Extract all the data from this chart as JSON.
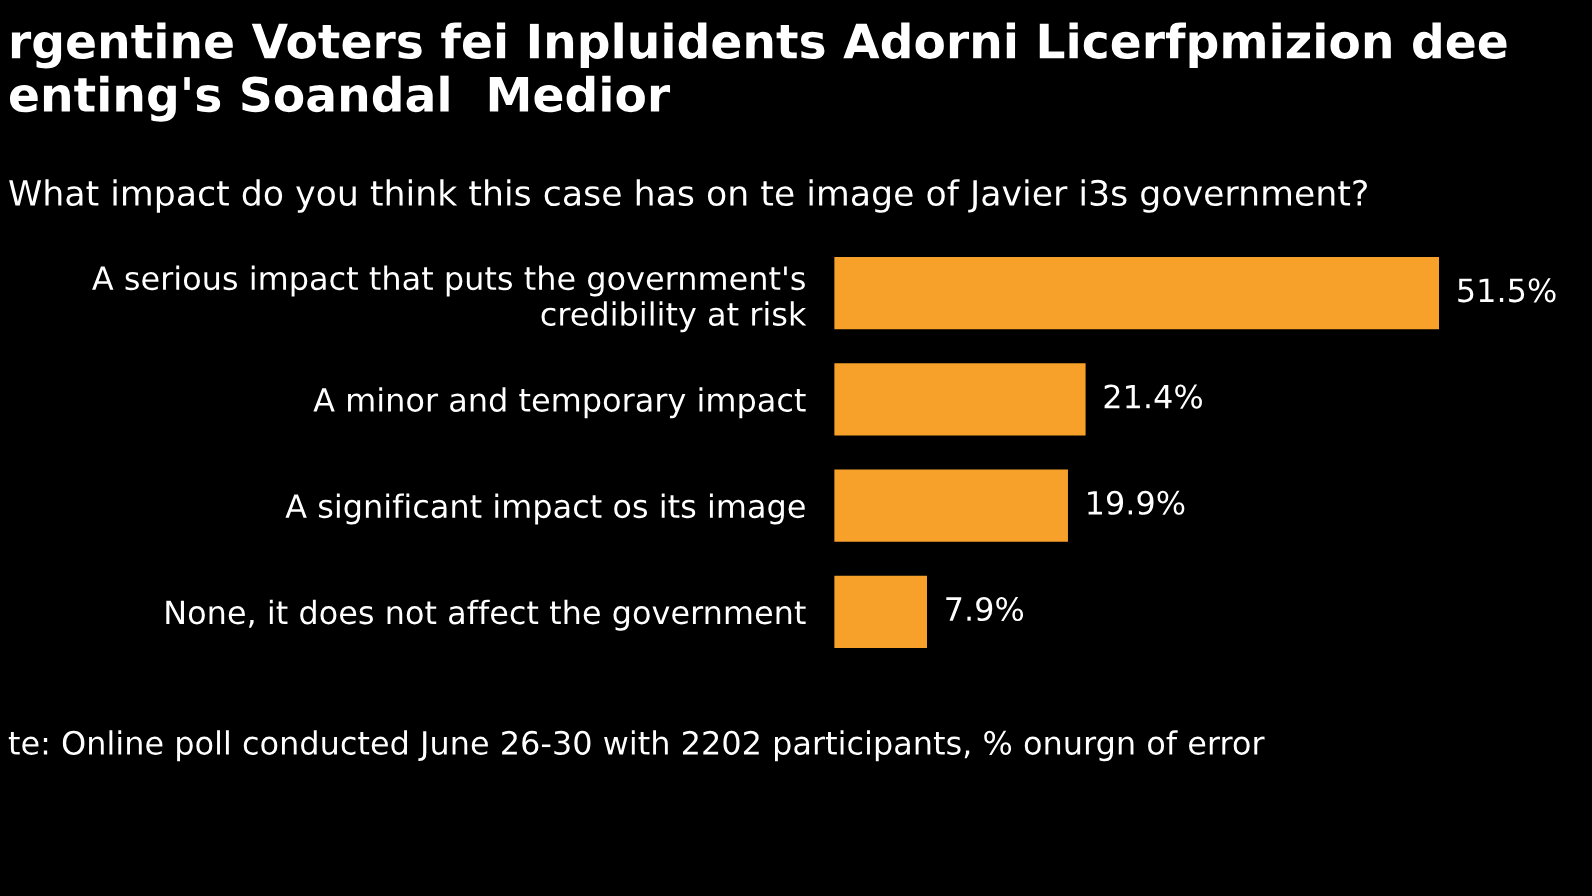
{
  "chart_data": {
    "type": "bar",
    "orientation": "horizontal",
    "title": "rgentine Voters fei Inpluidents Adorni Licerfpmizion dee\nenting's Soandal  Medior",
    "subtitle": "What impact do you think this case has on te image of Javier i3s government?",
    "categories": [
      "A serious impact that puts the government's\ncredibility at risk",
      "A minor and temporary impact",
      "A significant impact os its image",
      "None, it does not affect the government"
    ],
    "values": [
      51.5,
      21.4,
      19.9,
      7.9
    ],
    "value_labels": [
      "51.5%",
      "21.4%",
      "19.9%",
      "7.9%"
    ],
    "color": "#f7a12b",
    "grid": false,
    "legend": false,
    "annotations": [
      "te: Online poll conducted June 26-30 with 2202 participants, % onurgn of error"
    ]
  }
}
